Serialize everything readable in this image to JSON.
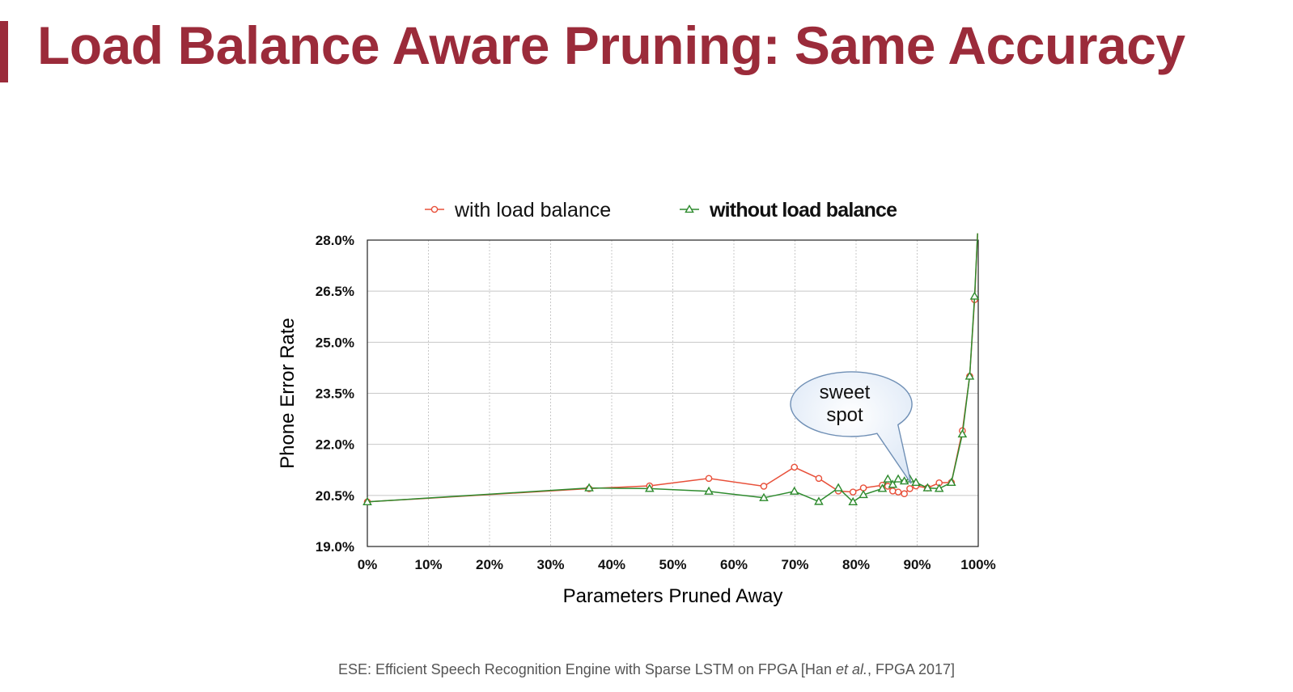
{
  "slide": {
    "title": "Load Balance Aware Pruning: Same Accuracy",
    "footer_pre": "ESE: Efficient Speech Recognition Engine with Sparse LSTM on FPGA [Han ",
    "footer_em": "et al.",
    "footer_post": ", FPGA 2017]",
    "accent_color": "#9b2b3a"
  },
  "chart_data": {
    "type": "line",
    "xlabel": "Parameters Pruned Away",
    "ylabel": "Phone Error Rate",
    "xlim": [
      0,
      100
    ],
    "ylim": [
      19.0,
      28.0
    ],
    "x_ticks": [
      "0%",
      "10%",
      "20%",
      "30%",
      "40%",
      "50%",
      "60%",
      "70%",
      "80%",
      "90%",
      "100%"
    ],
    "y_ticks": [
      "19.0%",
      "20.5%",
      "22.0%",
      "23.5%",
      "25.0%",
      "26.5%",
      "28.0%"
    ],
    "grid": true,
    "legend_position": "top",
    "annotation": {
      "lines": [
        "sweet",
        "spot"
      ],
      "points_to_x": 89,
      "points_to_y": 20.85
    },
    "series": [
      {
        "name": "with load balance",
        "color": "#e8503a",
        "marker": "circle",
        "points": [
          [
            0,
            20.31
          ],
          [
            36.3,
            20.7
          ],
          [
            46.2,
            20.78
          ],
          [
            55.9,
            21.0
          ],
          [
            64.9,
            20.77
          ],
          [
            69.9,
            21.33
          ],
          [
            73.9,
            21.0
          ],
          [
            77.1,
            20.63
          ],
          [
            79.5,
            20.6
          ],
          [
            81.2,
            20.72
          ],
          [
            84.3,
            20.8
          ],
          [
            85.2,
            20.77
          ],
          [
            86.0,
            20.63
          ],
          [
            86.9,
            20.6
          ],
          [
            87.9,
            20.55
          ],
          [
            88.8,
            20.7
          ],
          [
            89.8,
            20.78
          ],
          [
            91.7,
            20.72
          ],
          [
            93.6,
            20.87
          ],
          [
            95.6,
            20.88
          ],
          [
            97.4,
            22.4
          ],
          [
            98.6,
            24.0
          ],
          [
            99.4,
            26.25
          ],
          [
            99.9,
            28.2
          ]
        ]
      },
      {
        "name": "without load balance",
        "color": "#2e8b2e",
        "marker": "triangle",
        "points": [
          [
            0,
            20.31
          ],
          [
            36.3,
            20.72
          ],
          [
            46.2,
            20.7
          ],
          [
            55.9,
            20.62
          ],
          [
            64.9,
            20.43
          ],
          [
            69.9,
            20.62
          ],
          [
            73.9,
            20.32
          ],
          [
            77.1,
            20.72
          ],
          [
            79.5,
            20.31
          ],
          [
            81.2,
            20.52
          ],
          [
            84.3,
            20.7
          ],
          [
            85.2,
            20.98
          ],
          [
            86.0,
            20.82
          ],
          [
            86.9,
            20.98
          ],
          [
            87.9,
            20.92
          ],
          [
            88.8,
            20.98
          ],
          [
            89.8,
            20.88
          ],
          [
            91.7,
            20.72
          ],
          [
            93.6,
            20.7
          ],
          [
            95.6,
            20.88
          ],
          [
            97.4,
            22.3
          ],
          [
            98.6,
            24.0
          ],
          [
            99.4,
            26.35
          ],
          [
            99.9,
            28.2
          ]
        ]
      }
    ]
  }
}
